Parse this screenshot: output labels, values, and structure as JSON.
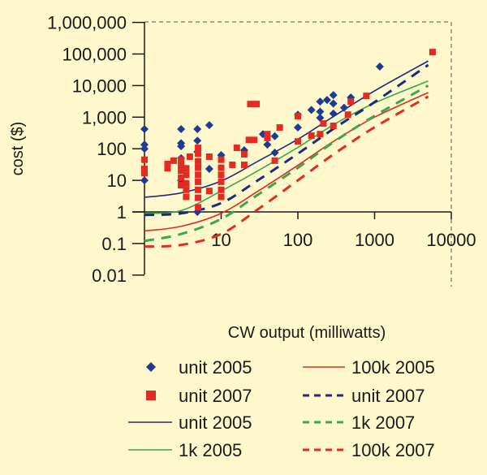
{
  "chart_data": {
    "type": "scatter",
    "title": "",
    "xlabel": "CW output (milliwatts)",
    "ylabel": "cost ($)",
    "x_scale": "log",
    "y_scale": "log",
    "xlim": [
      1,
      10000
    ],
    "ylim": [
      0.01,
      1000000
    ],
    "x_ticks": [
      {
        "v": 10,
        "label": "10"
      },
      {
        "v": 100,
        "label": "100"
      },
      {
        "v": 1000,
        "label": "1000"
      },
      {
        "v": 10000,
        "label": "10000"
      }
    ],
    "y_ticks": [
      {
        "v": 1000000,
        "label": "1,000,000"
      },
      {
        "v": 100000,
        "label": "100,000"
      },
      {
        "v": 10000,
        "label": "10,000"
      },
      {
        "v": 1000,
        "label": "1,000"
      },
      {
        "v": 100,
        "label": "100"
      },
      {
        "v": 10,
        "label": "10"
      },
      {
        "v": 1,
        "label": "1"
      },
      {
        "v": 0.1,
        "label": "0.1"
      },
      {
        "v": 0.01,
        "label": "0.01"
      }
    ],
    "grid": false,
    "legend_position": "bottom",
    "background": "#fef8cc",
    "series": [
      {
        "name": "unit 2005",
        "kind": "scatter",
        "marker": "diamond",
        "color": "#1f3a93",
        "points": [
          [
            1,
            420
          ],
          [
            1,
            135
          ],
          [
            1,
            100
          ],
          [
            1,
            10
          ],
          [
            3,
            420
          ],
          [
            3,
            150
          ],
          [
            3,
            120
          ],
          [
            3,
            50
          ],
          [
            3,
            10
          ],
          [
            4.9,
            420
          ],
          [
            4.9,
            180
          ],
          [
            4.9,
            80
          ],
          [
            4.9,
            1
          ],
          [
            7,
            560
          ],
          [
            7,
            23
          ],
          [
            10,
            63
          ],
          [
            20,
            90
          ],
          [
            35,
            290
          ],
          [
            40,
            135
          ],
          [
            50,
            250
          ],
          [
            50,
            75
          ],
          [
            100,
            1200
          ],
          [
            100,
            470
          ],
          [
            150,
            1700
          ],
          [
            195,
            3100
          ],
          [
            195,
            1500
          ],
          [
            195,
            950
          ],
          [
            240,
            3500
          ],
          [
            290,
            5000
          ],
          [
            290,
            2700
          ],
          [
            290,
            1300
          ],
          [
            400,
            2000
          ],
          [
            490,
            4200
          ],
          [
            1170,
            40000
          ]
        ]
      },
      {
        "name": "unit 2007",
        "kind": "scatter",
        "marker": "square",
        "color": "#e32b22",
        "points": [
          [
            1,
            45
          ],
          [
            1,
            23
          ],
          [
            1,
            17
          ],
          [
            2,
            33
          ],
          [
            2,
            24
          ],
          [
            2.4,
            42
          ],
          [
            3,
            45
          ],
          [
            3,
            30
          ],
          [
            3,
            20
          ],
          [
            3,
            12
          ],
          [
            3,
            7
          ],
          [
            3.5,
            24
          ],
          [
            3.5,
            15
          ],
          [
            3.5,
            8
          ],
          [
            3.5,
            5
          ],
          [
            3.5,
            3
          ],
          [
            3.9,
            56
          ],
          [
            5,
            107
          ],
          [
            5,
            70
          ],
          [
            5,
            40
          ],
          [
            5,
            25
          ],
          [
            5,
            15
          ],
          [
            5,
            9
          ],
          [
            5,
            5
          ],
          [
            5,
            2.8
          ],
          [
            5,
            1.4
          ],
          [
            7,
            56
          ],
          [
            7,
            4.6
          ],
          [
            10,
            45
          ],
          [
            10,
            25
          ],
          [
            10,
            15
          ],
          [
            10,
            9
          ],
          [
            10,
            5
          ],
          [
            10,
            3
          ],
          [
            14,
            31
          ],
          [
            16,
            107
          ],
          [
            20,
            31
          ],
          [
            20,
            67
          ],
          [
            24,
            2600
          ],
          [
            29,
            2600
          ],
          [
            23,
            190
          ],
          [
            27,
            190
          ],
          [
            40,
            290
          ],
          [
            40,
            220
          ],
          [
            50,
            42
          ],
          [
            58,
            470
          ],
          [
            100,
            1080
          ],
          [
            100,
            170
          ],
          [
            150,
            260
          ],
          [
            195,
            290
          ],
          [
            215,
            630
          ],
          [
            290,
            530
          ],
          [
            450,
            1200
          ],
          [
            490,
            3100
          ],
          [
            780,
            4700
          ],
          [
            5700,
            115000
          ]
        ]
      },
      {
        "name": "unit 2005",
        "kind": "line",
        "dash": false,
        "color": "#1f2a7a",
        "points": [
          [
            1,
            2.9
          ],
          [
            3,
            4
          ],
          [
            10,
            9.5
          ],
          [
            30,
            40
          ],
          [
            100,
            200
          ],
          [
            300,
            1100
          ],
          [
            1000,
            6800
          ],
          [
            5000,
            60000
          ]
        ]
      },
      {
        "name": "1k 2005",
        "kind": "line",
        "dash": false,
        "color": "#3aa74a",
        "points": [
          [
            1,
            0.9
          ],
          [
            3,
            1.1
          ],
          [
            10,
            4.6
          ],
          [
            30,
            20
          ],
          [
            100,
            110
          ],
          [
            300,
            600
          ],
          [
            1000,
            2800
          ],
          [
            5000,
            14000
          ]
        ]
      },
      {
        "name": "100k 2005",
        "kind": "line",
        "dash": false,
        "color": "#e32b22",
        "points": [
          [
            1,
            0.25
          ],
          [
            3,
            0.35
          ],
          [
            10,
            0.9
          ],
          [
            30,
            4.5
          ],
          [
            100,
            30
          ],
          [
            300,
            180
          ],
          [
            1000,
            1000
          ],
          [
            5000,
            6000
          ]
        ]
      },
      {
        "name": "unit 2007",
        "kind": "line",
        "dash": true,
        "color": "#1f2a7a",
        "points": [
          [
            1,
            0.8
          ],
          [
            3,
            0.9
          ],
          [
            10,
            1.9
          ],
          [
            30,
            10
          ],
          [
            100,
            70
          ],
          [
            300,
            450
          ],
          [
            1000,
            3000
          ],
          [
            5000,
            45000
          ]
        ]
      },
      {
        "name": "1k 2007",
        "kind": "line",
        "dash": true,
        "color": "#3aa74a",
        "points": [
          [
            1,
            0.12
          ],
          [
            3,
            0.2
          ],
          [
            10,
            0.6
          ],
          [
            30,
            3.5
          ],
          [
            100,
            25
          ],
          [
            300,
            170
          ],
          [
            1000,
            1100
          ],
          [
            5000,
            10000
          ]
        ]
      },
      {
        "name": "100k 2007",
        "kind": "line",
        "dash": true,
        "color": "#e32b22",
        "points": [
          [
            1,
            0.08
          ],
          [
            3,
            0.09
          ],
          [
            10,
            0.2
          ],
          [
            30,
            1.2
          ],
          [
            100,
            10
          ],
          [
            300,
            70
          ],
          [
            1000,
            480
          ],
          [
            5000,
            4500
          ]
        ]
      }
    ]
  }
}
